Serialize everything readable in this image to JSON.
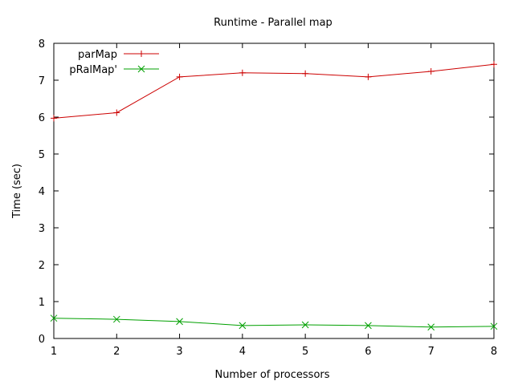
{
  "chart_data": {
    "type": "line",
    "title": "Runtime - Parallel map",
    "xlabel": "Number of processors",
    "ylabel": "Time (sec)",
    "xlim": [
      1,
      8
    ],
    "ylim": [
      0,
      8
    ],
    "x_ticks": [
      "1",
      "2",
      "3",
      "4",
      "5",
      "6",
      "7",
      "8"
    ],
    "y_ticks": [
      "0",
      "1",
      "2",
      "3",
      "4",
      "5",
      "6",
      "7",
      "8"
    ],
    "grid": false,
    "legend_position": "top-left",
    "x": [
      1,
      2,
      3,
      4,
      5,
      6,
      7,
      8
    ],
    "series": [
      {
        "name": "parMap",
        "marker": "plus",
        "color": "#cc0000",
        "values": [
          5.97,
          6.12,
          7.09,
          7.2,
          7.18,
          7.09,
          7.24,
          7.43
        ]
      },
      {
        "name": "pRalMap'",
        "marker": "cross",
        "color": "#00a000",
        "values": [
          0.55,
          0.52,
          0.46,
          0.35,
          0.37,
          0.35,
          0.31,
          0.33
        ]
      }
    ]
  }
}
